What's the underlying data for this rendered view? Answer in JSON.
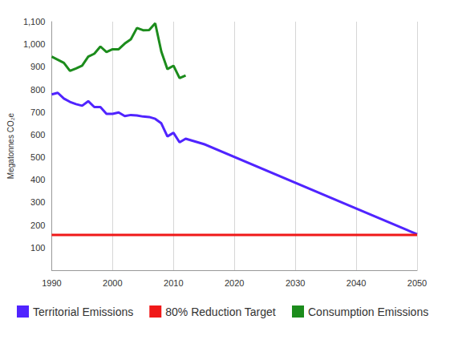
{
  "chart_data": {
    "type": "line",
    "y_label": "Megatonnes CO₂e",
    "xlim": [
      1990,
      2050
    ],
    "xticks": [
      1990,
      2000,
      2010,
      2020,
      2030,
      2040,
      2050
    ],
    "ylim": [
      0,
      1100
    ],
    "yticks": [
      100,
      200,
      300,
      400,
      500,
      600,
      700,
      800,
      900,
      {
        "value": 1000,
        "label": "1,000"
      },
      {
        "value": 1100,
        "label": "1,100"
      }
    ],
    "grid": "x",
    "legend": "bottom",
    "series": [
      {
        "name": "Territorial Emissions",
        "color": "#5024ff",
        "x": [
          1990,
          1991,
          1992,
          1993,
          1994,
          1995,
          1996,
          1997,
          1998,
          1999,
          2000,
          2001,
          2002,
          2003,
          2004,
          2005,
          2006,
          2007,
          2008,
          2009,
          2010,
          2011,
          2012,
          2015,
          2050
        ],
        "values": [
          778,
          785,
          760,
          745,
          735,
          728,
          748,
          722,
          722,
          692,
          692,
          698,
          682,
          687,
          685,
          680,
          678,
          670,
          650,
          592,
          608,
          566,
          582,
          558,
          159
        ]
      },
      {
        "name": "80% Reduction Target",
        "color": "#f01818",
        "x": [
          1990,
          2050
        ],
        "values": [
          156,
          156
        ]
      },
      {
        "name": "Consumption Emissions",
        "color": "#1c8c1c",
        "x": [
          1990,
          1992,
          1993,
          1994,
          1995,
          1996,
          1997,
          1998,
          1999,
          2000,
          2001,
          2002,
          2003,
          2004,
          2005,
          2006,
          2007,
          2008,
          2009,
          2010,
          2011,
          2012
        ],
        "values": [
          945,
          918,
          882,
          893,
          905,
          945,
          958,
          990,
          966,
          978,
          978,
          1003,
          1022,
          1072,
          1062,
          1063,
          1093,
          968,
          890,
          905,
          850,
          862
        ]
      }
    ]
  }
}
